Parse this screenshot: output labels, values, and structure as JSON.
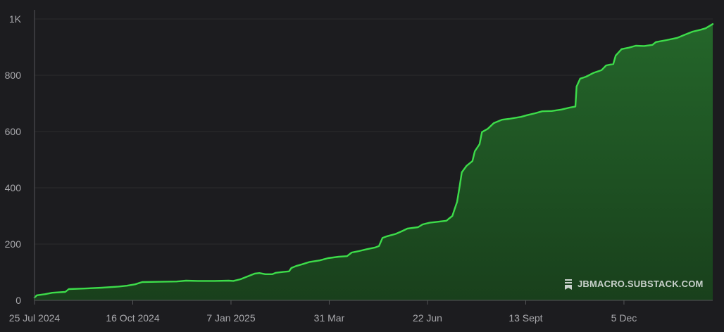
{
  "chart_data": {
    "type": "area",
    "title": "",
    "xlabel": "",
    "ylabel": "",
    "ylim": [
      0,
      1000
    ],
    "xlim": [
      "2024-07-25",
      "2026-02-18"
    ],
    "grid": true,
    "legend": "none",
    "y_ticks": [
      {
        "value": 0,
        "label": "0"
      },
      {
        "value": 200,
        "label": "200"
      },
      {
        "value": 400,
        "label": "400"
      },
      {
        "value": 600,
        "label": "600"
      },
      {
        "value": 800,
        "label": "800"
      },
      {
        "value": 1000,
        "label": "1K"
      }
    ],
    "x_ticks": [
      {
        "date": "2024-07-25",
        "label": "25 Jul 2024"
      },
      {
        "date": "2024-10-16",
        "label": "16 Oct 2024"
      },
      {
        "date": "2025-01-07",
        "label": "7 Jan 2025"
      },
      {
        "date": "2025-03-31",
        "label": "31 Mar"
      },
      {
        "date": "2025-06-22",
        "label": "22 Jun"
      },
      {
        "date": "2025-09-13",
        "label": "13 Sept"
      },
      {
        "date": "2025-12-05",
        "label": "5 Dec"
      }
    ],
    "series": [
      {
        "points": [
          [
            "2024-07-25",
            10
          ],
          [
            "2024-07-27",
            18
          ],
          [
            "2024-08-03",
            22
          ],
          [
            "2024-08-09",
            27
          ],
          [
            "2024-08-20",
            30
          ],
          [
            "2024-08-23",
            40
          ],
          [
            "2024-09-05",
            42
          ],
          [
            "2024-09-20",
            45
          ],
          [
            "2024-10-04",
            49
          ],
          [
            "2024-10-11",
            52
          ],
          [
            "2024-10-18",
            57
          ],
          [
            "2024-10-24",
            65
          ],
          [
            "2024-11-08",
            66
          ],
          [
            "2024-11-22",
            67
          ],
          [
            "2024-11-30",
            70
          ],
          [
            "2024-12-10",
            69
          ],
          [
            "2024-12-24",
            69
          ],
          [
            "2025-01-05",
            70
          ],
          [
            "2025-01-09",
            69
          ],
          [
            "2025-01-15",
            75
          ],
          [
            "2025-01-21",
            85
          ],
          [
            "2025-01-27",
            95
          ],
          [
            "2025-01-31",
            97
          ],
          [
            "2025-02-05",
            93
          ],
          [
            "2025-02-11",
            93
          ],
          [
            "2025-02-14",
            98
          ],
          [
            "2025-02-20",
            101
          ],
          [
            "2025-02-25",
            103
          ],
          [
            "2025-02-27",
            115
          ],
          [
            "2025-03-03",
            122
          ],
          [
            "2025-03-08",
            128
          ],
          [
            "2025-03-14",
            136
          ],
          [
            "2025-03-23",
            142
          ],
          [
            "2025-03-30",
            150
          ],
          [
            "2025-04-08",
            155
          ],
          [
            "2025-04-15",
            157
          ],
          [
            "2025-04-19",
            170
          ],
          [
            "2025-04-25",
            175
          ],
          [
            "2025-05-02",
            182
          ],
          [
            "2025-05-09",
            188
          ],
          [
            "2025-05-12",
            193
          ],
          [
            "2025-05-15",
            222
          ],
          [
            "2025-05-19",
            228
          ],
          [
            "2025-05-26",
            236
          ],
          [
            "2025-05-31",
            245
          ],
          [
            "2025-06-05",
            255
          ],
          [
            "2025-06-14",
            260
          ],
          [
            "2025-06-18",
            270
          ],
          [
            "2025-06-24",
            276
          ],
          [
            "2025-06-30",
            279
          ],
          [
            "2025-07-08",
            283
          ],
          [
            "2025-07-10",
            290
          ],
          [
            "2025-07-13",
            300
          ],
          [
            "2025-07-15",
            325
          ],
          [
            "2025-07-17",
            350
          ],
          [
            "2025-07-19",
            400
          ],
          [
            "2025-07-21",
            455
          ],
          [
            "2025-07-25",
            478
          ],
          [
            "2025-07-30",
            495
          ],
          [
            "2025-08-01",
            530
          ],
          [
            "2025-08-05",
            555
          ],
          [
            "2025-08-07",
            598
          ],
          [
            "2025-08-12",
            610
          ],
          [
            "2025-08-17",
            630
          ],
          [
            "2025-08-24",
            642
          ],
          [
            "2025-08-30",
            645
          ],
          [
            "2025-09-03",
            648
          ],
          [
            "2025-09-09",
            652
          ],
          [
            "2025-09-14",
            658
          ],
          [
            "2025-09-21",
            665
          ],
          [
            "2025-09-27",
            672
          ],
          [
            "2025-10-05",
            673
          ],
          [
            "2025-10-13",
            678
          ],
          [
            "2025-10-20",
            685
          ],
          [
            "2025-10-25",
            689
          ],
          [
            "2025-10-26",
            760
          ],
          [
            "2025-10-29",
            788
          ],
          [
            "2025-11-03",
            795
          ],
          [
            "2025-11-09",
            808
          ],
          [
            "2025-11-16",
            818
          ],
          [
            "2025-11-20",
            835
          ],
          [
            "2025-11-26",
            840
          ],
          [
            "2025-11-28",
            870
          ],
          [
            "2025-12-03",
            893
          ],
          [
            "2025-12-09",
            898
          ],
          [
            "2025-12-15",
            905
          ],
          [
            "2025-12-22",
            904
          ],
          [
            "2025-12-29",
            908
          ],
          [
            "2026-01-01",
            918
          ],
          [
            "2026-01-10",
            925
          ],
          [
            "2026-01-19",
            933
          ],
          [
            "2026-01-26",
            945
          ],
          [
            "2026-02-01",
            955
          ],
          [
            "2026-02-08",
            962
          ],
          [
            "2026-02-12",
            967
          ],
          [
            "2026-02-18",
            982
          ]
        ]
      }
    ]
  },
  "watermark": {
    "text": "JBMACRO.SUBSTACK.COM",
    "icon": "substack-icon"
  },
  "colors": {
    "background": "#1c1c1f",
    "line": "#3ddc4a",
    "fill_top": "#24662a",
    "fill_bottom": "#19401c",
    "grid": "#2b2b2e",
    "axis": "#555558",
    "tick_text": "#a9a9ad"
  }
}
